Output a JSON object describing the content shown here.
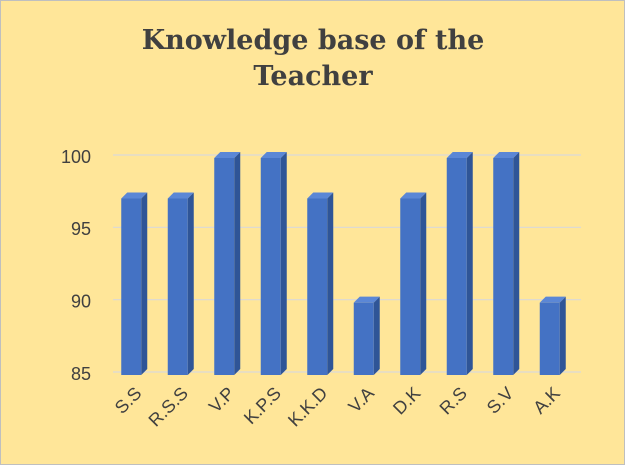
{
  "chart_data": {
    "type": "bar",
    "title": "Knowledge base of the Teacher",
    "categories": [
      "S.S",
      "R.S.S",
      "V.P",
      "K.P.S",
      "K.K.D",
      "V.A",
      "D.K",
      "R.S",
      "S.V",
      "A.K"
    ],
    "values": [
      97.2,
      97.2,
      100,
      100,
      97.2,
      90,
      97.2,
      100,
      100,
      90
    ],
    "color": "#4472c4",
    "ylim": [
      85,
      100
    ],
    "yticks": [
      85,
      90,
      95,
      100
    ],
    "grid": true
  }
}
